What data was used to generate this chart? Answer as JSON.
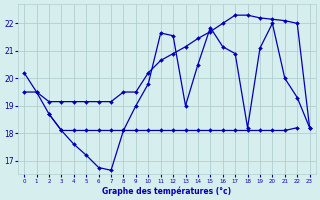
{
  "title": "Graphe des températures (°c)",
  "background_color": "#d6eeee",
  "grid_color": "#b0d0d0",
  "line_color": "#0000bb",
  "xlim": [
    -0.5,
    23.5
  ],
  "ylim": [
    16.5,
    22.7
  ],
  "xticks": [
    0,
    1,
    2,
    3,
    4,
    5,
    6,
    7,
    8,
    9,
    10,
    11,
    12,
    13,
    14,
    15,
    16,
    17,
    18,
    19,
    20,
    21,
    22,
    23
  ],
  "yticks": [
    17,
    18,
    19,
    20,
    21,
    22
  ],
  "curve1_x": [
    0,
    1,
    2,
    3,
    4,
    5,
    6,
    7,
    8,
    9,
    10,
    11,
    12,
    13,
    14,
    15,
    16,
    17,
    18,
    19,
    20,
    21,
    22,
    23
  ],
  "curve1_y": [
    20.2,
    19.5,
    18.7,
    18.1,
    17.6,
    17.2,
    16.75,
    16.65,
    18.1,
    19.0,
    19.8,
    21.65,
    21.55,
    19.0,
    20.5,
    21.85,
    21.15,
    20.9,
    18.2,
    21.1,
    22.0,
    20.0,
    19.3,
    18.2
  ],
  "trend1_x": [
    0,
    1,
    2,
    3,
    4,
    5,
    6,
    7,
    8,
    9,
    10,
    11,
    12,
    13,
    14,
    15,
    16,
    17,
    18,
    19,
    20,
    21,
    22,
    23
  ],
  "trend1_y": [
    19.5,
    19.5,
    19.15,
    19.15,
    19.15,
    19.15,
    19.15,
    19.15,
    19.5,
    19.5,
    20.2,
    20.65,
    20.9,
    21.15,
    21.45,
    21.7,
    22.0,
    22.3,
    22.3,
    22.2,
    22.15,
    22.1,
    22.0,
    18.2
  ],
  "trend2_x": [
    2,
    3,
    4,
    5,
    6,
    7,
    8,
    9,
    10,
    11,
    12,
    13,
    14,
    15,
    16,
    17,
    18,
    19,
    20,
    21,
    22
  ],
  "trend2_y": [
    18.7,
    18.1,
    18.1,
    18.1,
    18.1,
    18.1,
    18.1,
    18.1,
    18.1,
    18.1,
    18.1,
    18.1,
    18.1,
    18.1,
    18.1,
    18.1,
    18.1,
    18.1,
    18.1,
    18.1,
    18.2
  ]
}
